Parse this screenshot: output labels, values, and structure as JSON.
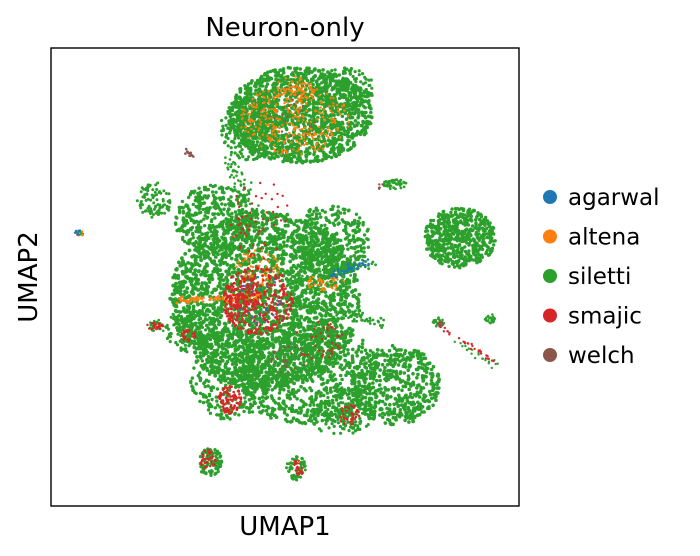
{
  "chart_data": {
    "type": "scatter",
    "title": "Neuron-only",
    "xlabel": "UMAP1",
    "ylabel": "UMAP2",
    "xticks": [],
    "yticks": [],
    "grid": false,
    "legend_position": "right",
    "series": [
      {
        "name": "agarwal",
        "color": "#1f77b4"
      },
      {
        "name": "altena",
        "color": "#ff7f0e"
      },
      {
        "name": "siletti",
        "color": "#2ca02c"
      },
      {
        "name": "smajic",
        "color": "#d62728"
      },
      {
        "name": "welch",
        "color": "#8c564b"
      }
    ]
  }
}
